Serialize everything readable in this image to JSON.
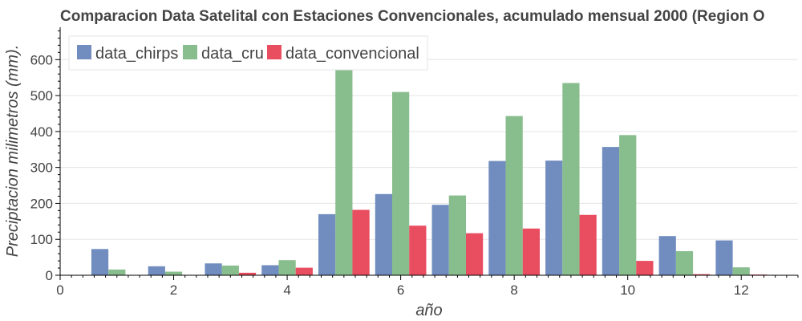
{
  "chart_data": {
    "type": "bar",
    "title": "Comparacion Data Satelital con Estaciones Convencionales, acumulado mensual 2000 (Region O",
    "xlabel": "año",
    "ylabel": "Preciptacion milimetros (mm).",
    "x": [
      1,
      2,
      3,
      4,
      5,
      6,
      7,
      8,
      9,
      10,
      11,
      12
    ],
    "xlim": [
      0,
      13
    ],
    "ylim": [
      0,
      690
    ],
    "x_ticks": [
      0,
      2,
      4,
      6,
      8,
      10,
      12
    ],
    "y_ticks": [
      0,
      100,
      200,
      300,
      400,
      500,
      600
    ],
    "grid": true,
    "legend_position": "top-left",
    "series": [
      {
        "name": "data_chirps",
        "color": "#718dbf",
        "values": [
          73,
          25,
          33,
          28,
          170,
          226,
          196,
          318,
          319,
          357,
          109,
          97
        ]
      },
      {
        "name": "data_cru",
        "color": "#88bd8d",
        "values": [
          16,
          10,
          27,
          42,
          572,
          510,
          222,
          443,
          535,
          390,
          67,
          22
        ]
      },
      {
        "name": "data_convencional",
        "color": "#e84d60",
        "values": [
          0,
          0,
          7,
          21,
          182,
          138,
          117,
          130,
          168,
          40,
          3,
          2
        ]
      }
    ]
  }
}
